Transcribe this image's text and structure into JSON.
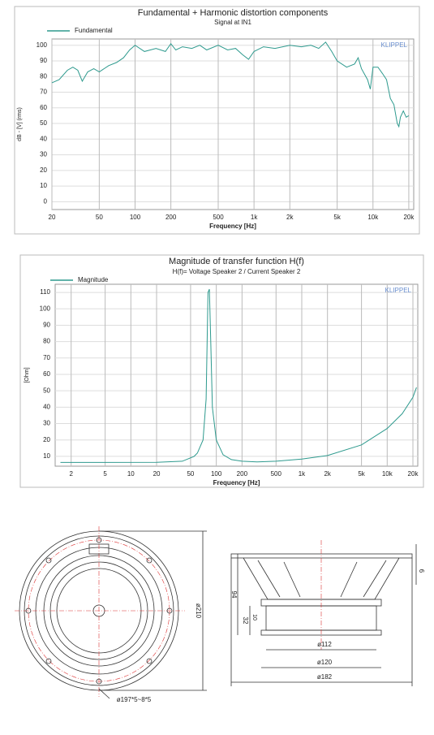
{
  "chart_data": [
    {
      "type": "line",
      "title": "Fundamental + Harmonic distortion components",
      "subtitle": "Signal at IN1",
      "x_label": "Frequency [Hz]",
      "y_label": "dB - [V] (rms)",
      "watermark": "KLIPPEL",
      "x_scale": "log",
      "grid": true,
      "legend": "upper left",
      "xlim": [
        20,
        22000
      ],
      "ylim": [
        -5,
        104
      ],
      "xticks": [
        20,
        50,
        100,
        200,
        500,
        {
          "value": 1000,
          "label": "1k"
        },
        {
          "value": 2000,
          "label": "2k"
        },
        {
          "value": 5000,
          "label": "5k"
        },
        {
          "value": 10000,
          "label": "10k"
        },
        {
          "value": 20000,
          "label": "20k"
        }
      ],
      "yticks": [
        0,
        10,
        20,
        30,
        40,
        50,
        60,
        70,
        80,
        90,
        100
      ],
      "x": [
        20,
        23,
        27,
        30,
        33,
        36,
        40,
        45,
        50,
        60,
        70,
        80,
        90,
        100,
        120,
        150,
        180,
        200,
        220,
        250,
        300,
        350,
        400,
        500,
        600,
        700,
        800,
        900,
        1000,
        1200,
        1500,
        2000,
        2500,
        3000,
        3500,
        4000,
        4500,
        5000,
        6000,
        7000,
        7500,
        8000,
        9000,
        9500,
        10000,
        11000,
        12000,
        13000,
        14000,
        15000,
        16000,
        16500,
        17000,
        18000,
        19000,
        20000
      ],
      "series": [
        {
          "name": "Fundamental",
          "color": "#2e9a8e",
          "values": [
            76,
            78,
            84,
            86,
            84,
            77,
            83,
            85,
            83,
            87,
            89,
            92,
            97,
            100,
            96,
            98,
            96,
            101,
            97,
            99,
            98,
            100,
            97,
            100,
            97,
            98,
            94,
            91,
            96,
            99,
            98,
            100,
            99,
            100,
            98,
            102,
            96,
            90,
            86,
            88,
            92,
            85,
            78,
            72,
            86,
            86,
            82,
            78,
            66,
            62,
            50,
            48,
            54,
            58,
            54,
            55
          ]
        }
      ]
    },
    {
      "type": "line",
      "title": "Magnitude of transfer function H(f)",
      "subtitle": "H(f)= Voltage Speaker 2 / Current Speaker 2",
      "x_label": "Frequency [Hz]",
      "y_label": "[Ohm]",
      "watermark": "KLIPPEL",
      "x_scale": "log",
      "grid": true,
      "legend": "upper left",
      "xlim": [
        1.3,
        22800
      ],
      "ylim": [
        4,
        115
      ],
      "xticks": [
        2,
        5,
        10,
        20,
        50,
        100,
        200,
        500,
        {
          "value": 1000,
          "label": "1k"
        },
        {
          "value": 2000,
          "label": "2k"
        },
        {
          "value": 5000,
          "label": "5k"
        },
        {
          "value": 10000,
          "label": "10k"
        },
        {
          "value": 20000,
          "label": "20k"
        }
      ],
      "yticks": [
        10,
        20,
        30,
        40,
        50,
        60,
        70,
        80,
        90,
        100,
        110
      ],
      "x": [
        1.5,
        5,
        20,
        40,
        55,
        60,
        70,
        76,
        80,
        83,
        86,
        90,
        100,
        120,
        150,
        200,
        300,
        500,
        1000,
        2000,
        5000,
        10000,
        15000,
        20000,
        22000
      ],
      "series": [
        {
          "name": "Magnitude",
          "color": "#2e9a8e",
          "values": [
            6.3,
            6.3,
            6.4,
            7,
            10,
            12,
            20,
            45,
            110,
            112,
            80,
            40,
            20,
            11,
            8,
            7,
            6.6,
            7,
            8.3,
            10.5,
            17,
            27,
            36,
            46,
            52
          ]
        }
      ]
    }
  ],
  "drawing": {
    "front_view": {
      "bolt_circle": "ø197*5~8*5",
      "outer_diameter": "ø210"
    },
    "side_view": {
      "depth": "94",
      "magnet_height": "32",
      "plate": "10",
      "flange": "6",
      "magnet_diameter": "ø112",
      "back_diameter": "ø120",
      "cutout_diameter": "ø182"
    }
  }
}
